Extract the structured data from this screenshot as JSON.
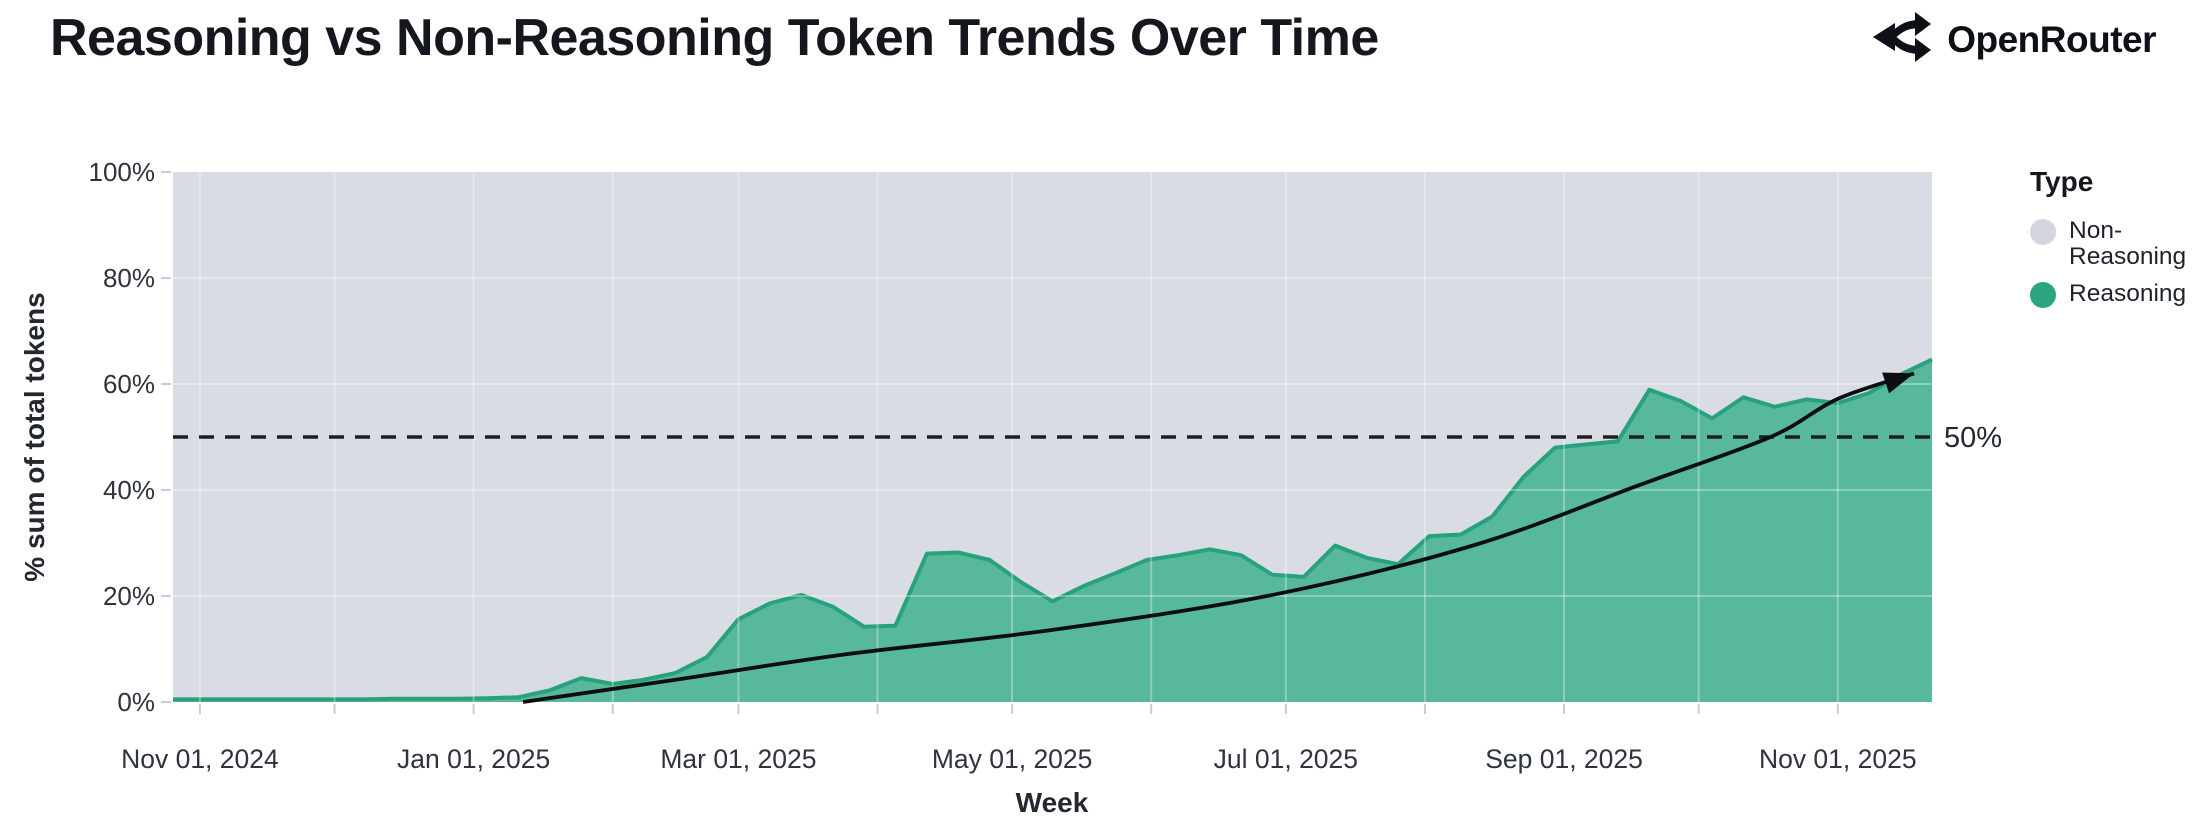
{
  "header": {
    "title": "Reasoning vs Non-Reasoning Token Trends Over Time",
    "brand": "OpenRouter"
  },
  "chart_data": {
    "type": "area",
    "stacking": "percent",
    "title": "Reasoning vs Non-Reasoning Token Trends Over Time",
    "xlabel": "Week",
    "ylabel": "% sum of total tokens",
    "x_domain": [
      "2024-10-26",
      "2025-11-22"
    ],
    "ylim": [
      0,
      100
    ],
    "grid": "on",
    "legend_position": "right",
    "y_ticks": [
      {
        "v": 0,
        "label": "0%"
      },
      {
        "v": 20,
        "label": "20%"
      },
      {
        "v": 40,
        "label": "40%"
      },
      {
        "v": 60,
        "label": "60%"
      },
      {
        "v": 80,
        "label": "80%"
      },
      {
        "v": 100,
        "label": "100%"
      }
    ],
    "x_ticks": [
      {
        "date": "2024-11-01",
        "label": "Nov 01, 2024"
      },
      {
        "date": "2025-01-01",
        "label": "Jan 01, 2025"
      },
      {
        "date": "2025-03-01",
        "label": "Mar 01, 2025"
      },
      {
        "date": "2025-05-01",
        "label": "May 01, 2025"
      },
      {
        "date": "2025-07-01",
        "label": "Jul 01, 2025"
      },
      {
        "date": "2025-09-01",
        "label": "Sep 01, 2025"
      },
      {
        "date": "2025-11-01",
        "label": "Nov 01, 2025"
      }
    ],
    "legend": {
      "title": "Type",
      "items": [
        {
          "label": "Non-Reasoning",
          "color": "#d3d6de"
        },
        {
          "label": "Reasoning",
          "color": "#2ba57f"
        }
      ]
    },
    "reference_line": {
      "value": 50,
      "label": "50%"
    },
    "series": [
      {
        "name": "Reasoning",
        "unit": "% of total tokens",
        "points": [
          {
            "d": "2024-10-26",
            "v": 0.5
          },
          {
            "d": "2024-11-02",
            "v": 0.5
          },
          {
            "d": "2024-11-09",
            "v": 0.5
          },
          {
            "d": "2024-11-16",
            "v": 0.5
          },
          {
            "d": "2024-11-23",
            "v": 0.5
          },
          {
            "d": "2024-11-30",
            "v": 0.5
          },
          {
            "d": "2024-12-07",
            "v": 0.5
          },
          {
            "d": "2024-12-14",
            "v": 0.6
          },
          {
            "d": "2024-12-21",
            "v": 0.6
          },
          {
            "d": "2024-12-28",
            "v": 0.6
          },
          {
            "d": "2025-01-04",
            "v": 0.7
          },
          {
            "d": "2025-01-11",
            "v": 0.9
          },
          {
            "d": "2025-01-18",
            "v": 2.2
          },
          {
            "d": "2025-01-25",
            "v": 4.5
          },
          {
            "d": "2025-02-01",
            "v": 3.4
          },
          {
            "d": "2025-02-08",
            "v": 4.2
          },
          {
            "d": "2025-02-15",
            "v": 5.5
          },
          {
            "d": "2025-02-22",
            "v": 8.5
          },
          {
            "d": "2025-03-01",
            "v": 15.6
          },
          {
            "d": "2025-03-08",
            "v": 18.6
          },
          {
            "d": "2025-03-15",
            "v": 20.2
          },
          {
            "d": "2025-03-22",
            "v": 18.0
          },
          {
            "d": "2025-03-29",
            "v": 14.2
          },
          {
            "d": "2025-04-05",
            "v": 14.4
          },
          {
            "d": "2025-04-12",
            "v": 28.0
          },
          {
            "d": "2025-04-19",
            "v": 28.2
          },
          {
            "d": "2025-04-26",
            "v": 26.8
          },
          {
            "d": "2025-05-03",
            "v": 22.6
          },
          {
            "d": "2025-05-10",
            "v": 19.0
          },
          {
            "d": "2025-05-17",
            "v": 21.9
          },
          {
            "d": "2025-05-24",
            "v": 24.3
          },
          {
            "d": "2025-05-31",
            "v": 26.8
          },
          {
            "d": "2025-06-07",
            "v": 27.7
          },
          {
            "d": "2025-06-14",
            "v": 28.8
          },
          {
            "d": "2025-06-21",
            "v": 27.7
          },
          {
            "d": "2025-06-28",
            "v": 24.0
          },
          {
            "d": "2025-07-05",
            "v": 23.6
          },
          {
            "d": "2025-07-12",
            "v": 29.5
          },
          {
            "d": "2025-07-19",
            "v": 27.2
          },
          {
            "d": "2025-07-26",
            "v": 26.0
          },
          {
            "d": "2025-08-02",
            "v": 31.3
          },
          {
            "d": "2025-08-09",
            "v": 31.6
          },
          {
            "d": "2025-08-16",
            "v": 35.0
          },
          {
            "d": "2025-08-23",
            "v": 42.5
          },
          {
            "d": "2025-08-30",
            "v": 48.0
          },
          {
            "d": "2025-09-06",
            "v": 48.6
          },
          {
            "d": "2025-09-13",
            "v": 49.2
          },
          {
            "d": "2025-09-20",
            "v": 58.9
          },
          {
            "d": "2025-09-27",
            "v": 56.8
          },
          {
            "d": "2025-10-04",
            "v": 53.5
          },
          {
            "d": "2025-10-11",
            "v": 57.5
          },
          {
            "d": "2025-10-18",
            "v": 55.7
          },
          {
            "d": "2025-10-25",
            "v": 57.1
          },
          {
            "d": "2025-11-01",
            "v": 56.4
          },
          {
            "d": "2025-11-08",
            "v": 58.3
          },
          {
            "d": "2025-11-15",
            "v": 61.8
          },
          {
            "d": "2025-11-22",
            "v": 64.6
          }
        ]
      },
      {
        "name": "Non-Reasoning",
        "note": "complement of Reasoning; fills remainder up to 100%"
      }
    ],
    "trend_arrow": {
      "points": [
        {
          "d": "2025-01-12",
          "v": 0
        },
        {
          "d": "2025-02-15",
          "v": 4.2
        },
        {
          "d": "2025-03-25",
          "v": 9.0
        },
        {
          "d": "2025-05-10",
          "v": 13.6
        },
        {
          "d": "2025-06-28",
          "v": 20.2
        },
        {
          "d": "2025-08-12",
          "v": 29.6
        },
        {
          "d": "2025-09-18",
          "v": 41.0
        },
        {
          "d": "2025-10-17",
          "v": 50.0
        },
        {
          "d": "2025-11-01",
          "v": 57.2
        },
        {
          "d": "2025-11-18",
          "v": 62.0
        }
      ]
    },
    "colors": {
      "reasoning_fill": "#58b89b",
      "reasoning_stroke": "#28a27d",
      "non_reasoning_fill": "#d9dce4",
      "gridline": "rgba(255,255,255,0.32)",
      "tick": "#c7ccd6",
      "reference": "#1c1e23",
      "arrow": "#0d0e11"
    }
  }
}
